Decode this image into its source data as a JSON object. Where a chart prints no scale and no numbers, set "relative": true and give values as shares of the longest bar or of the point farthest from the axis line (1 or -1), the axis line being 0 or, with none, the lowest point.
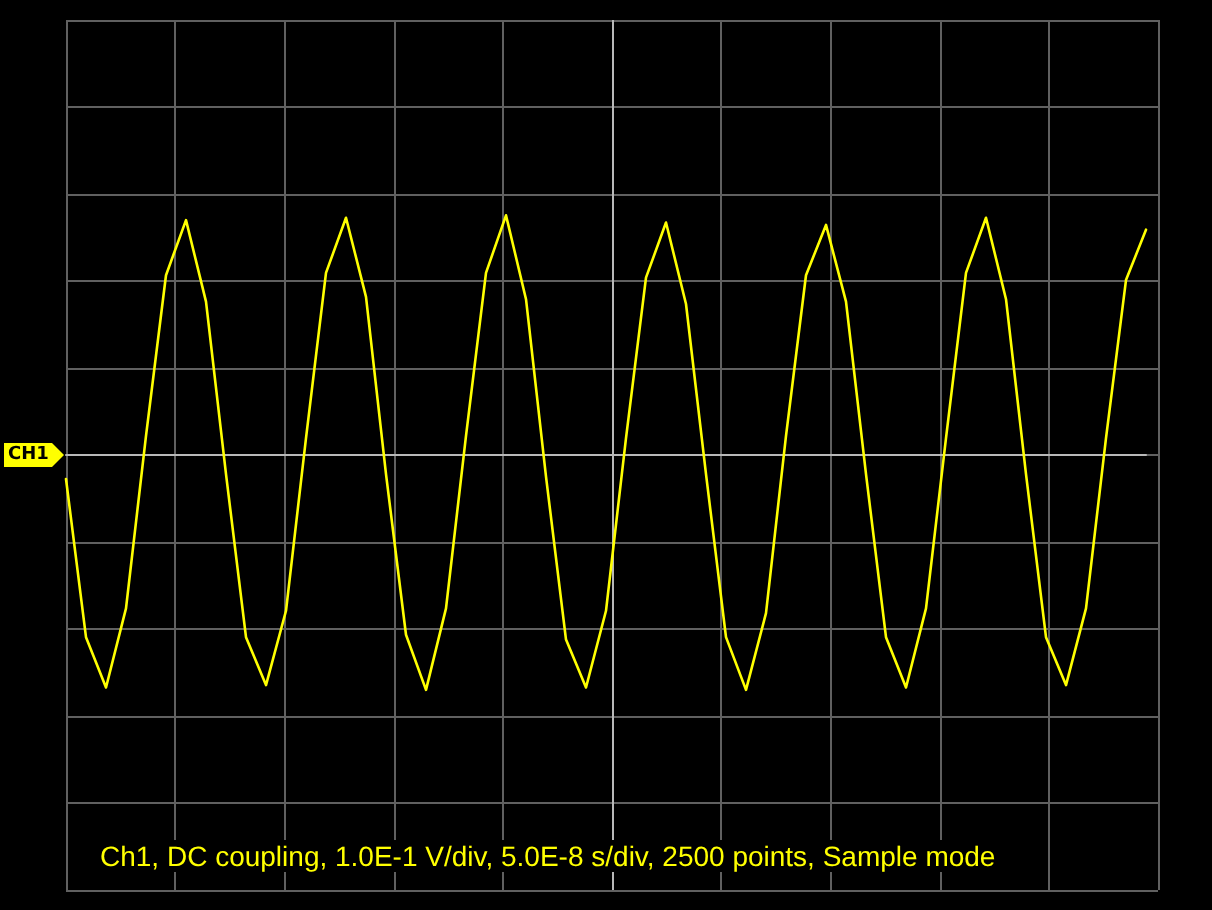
{
  "chart_data": {
    "type": "line",
    "relative": true,
    "grid": true,
    "marker": "none",
    "line_style": "solid",
    "categories": [
      null,
      null,
      null,
      null,
      null,
      null,
      null,
      null,
      null,
      null,
      null,
      null,
      null,
      null,
      null,
      null,
      null,
      null,
      null,
      null,
      null,
      null,
      null,
      null,
      null,
      null,
      null,
      null,
      null,
      null,
      null,
      null,
      null,
      null,
      null,
      null,
      null,
      null,
      null,
      null,
      null,
      null,
      null,
      null,
      null,
      null,
      null,
      null,
      null,
      null,
      null,
      null,
      null,
      null,
      null
    ],
    "series": [
      {
        "name": "CH1",
        "color": "#ffff00",
        "values": [
          -0.1,
          -0.76,
          -0.97,
          -0.64,
          0.08,
          0.75,
          0.98,
          0.64,
          -0.08,
          -0.76,
          -0.96,
          -0.65,
          0.07,
          0.76,
          0.99,
          0.66,
          -0.08,
          -0.75,
          -0.98,
          -0.64,
          0.08,
          0.76,
          1,
          0.65,
          -0.09,
          -0.77,
          -0.97,
          -0.65,
          0.07,
          0.74,
          0.97,
          0.63,
          -0.08,
          -0.76,
          -0.98,
          -0.66,
          0.08,
          0.75,
          0.96,
          0.64,
          -0.08,
          -0.76,
          -0.97,
          -0.64,
          0.07,
          0.76,
          0.99,
          0.65,
          -0.08,
          -0.76,
          -0.96,
          -0.64,
          0.07,
          0.73,
          0.94
        ]
      }
    ],
    "annotations": [
      "Ch1, DC coupling, 1.0E-1 V/div, 5.0E-8 s/div, 2500 points, Sample mode"
    ]
  }
}
